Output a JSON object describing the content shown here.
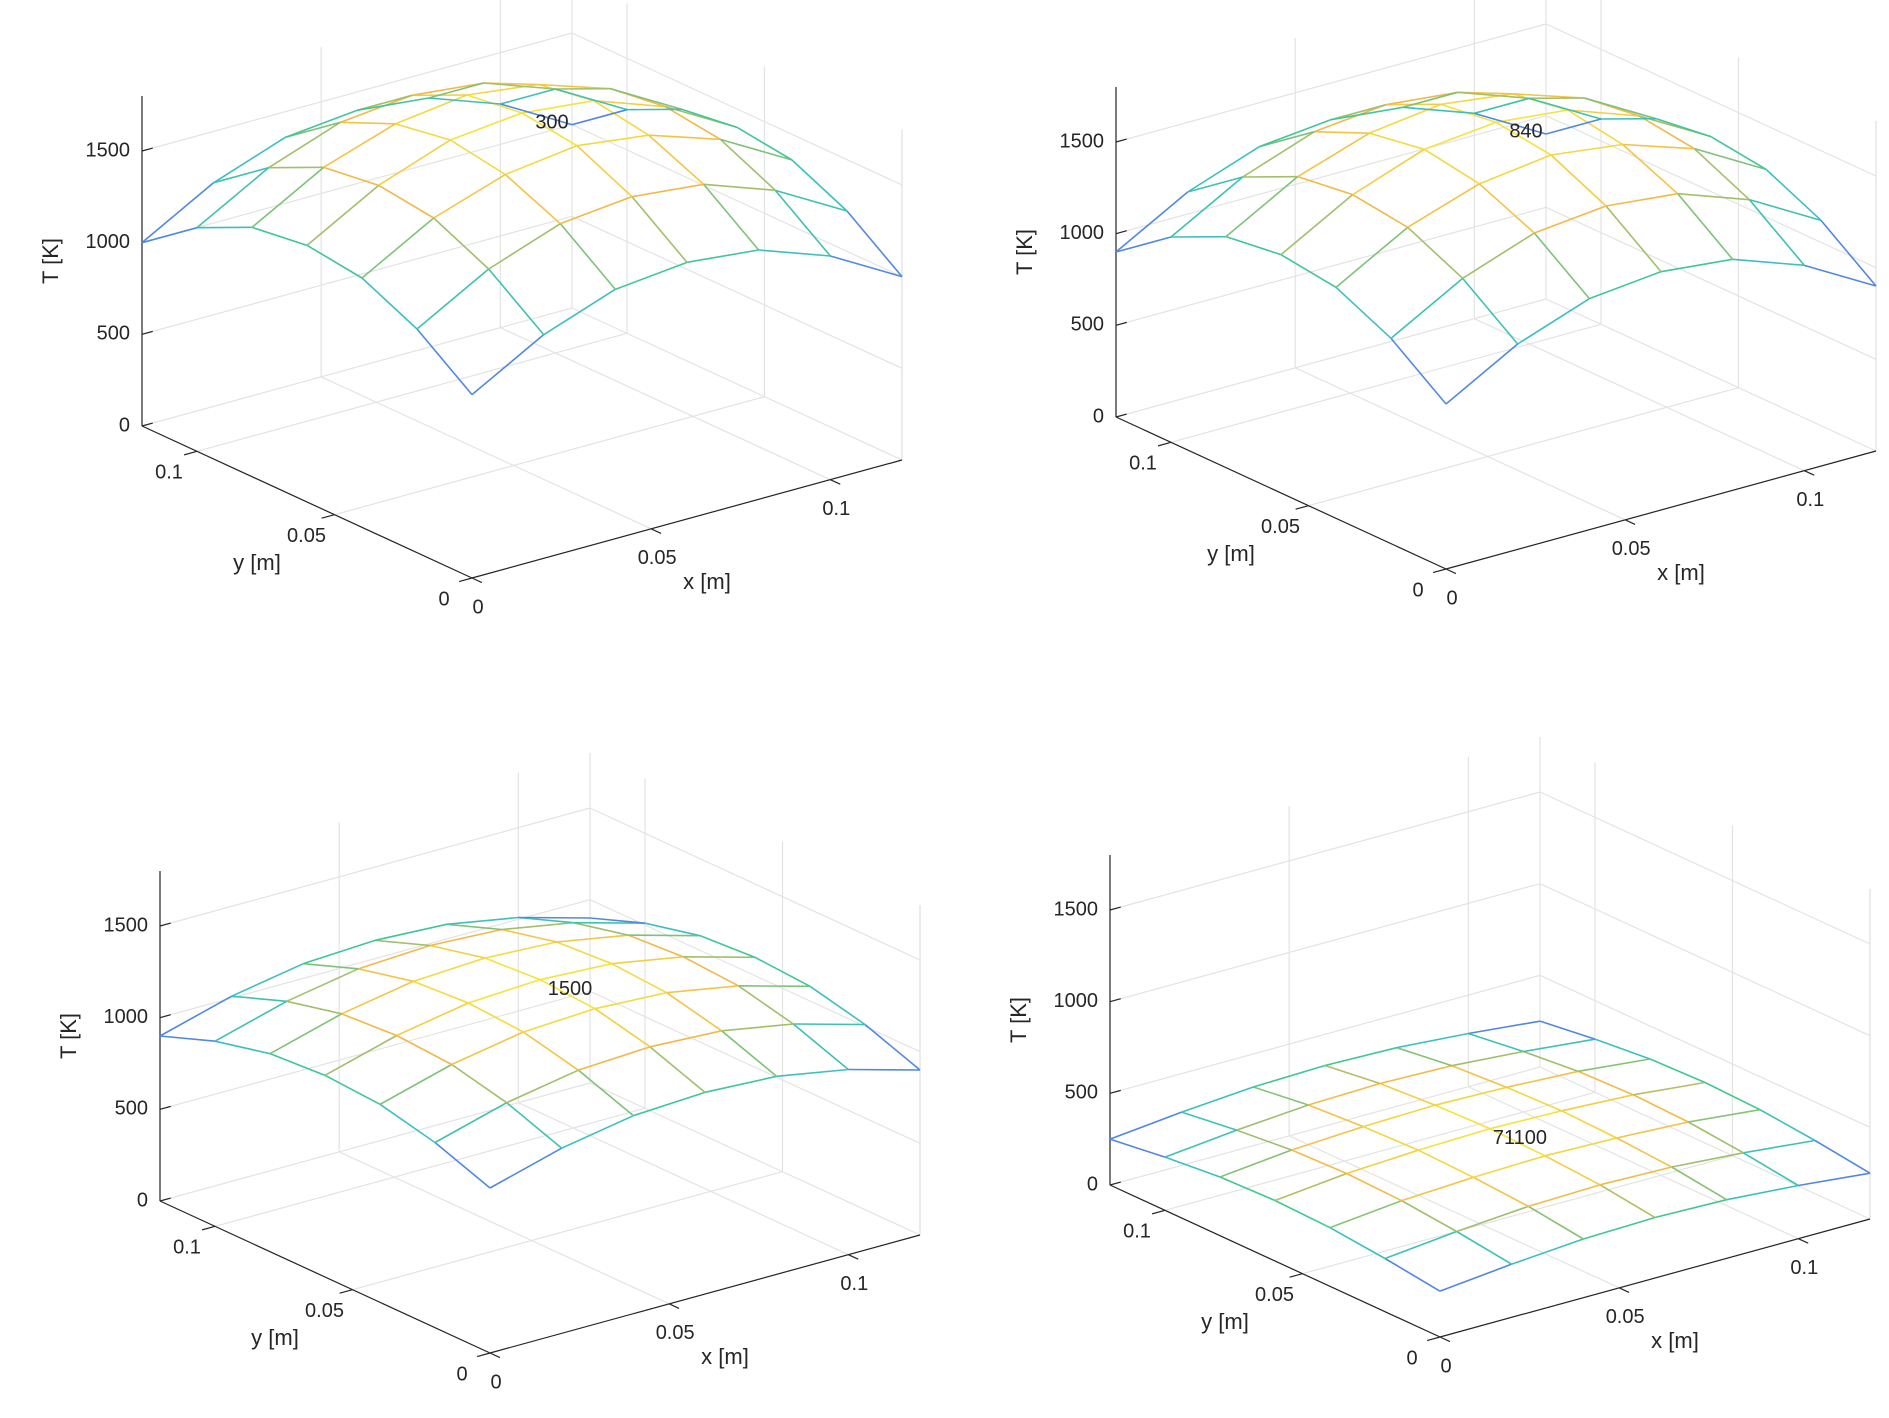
{
  "chart_data": [
    {
      "type": "surface",
      "annotation": "300",
      "xlabel": "x [m]",
      "ylabel": "y [m]",
      "zlabel": "T [K]",
      "x": [
        0,
        0.02,
        0.04,
        0.06,
        0.08,
        0.1,
        0.12
      ],
      "y": [
        0,
        0.02,
        0.04,
        0.06,
        0.08,
        0.1,
        0.12
      ],
      "z": [
        [
          1000,
          1220,
          1360,
          1400,
          1360,
          1220,
          1000
        ],
        [
          1220,
          1440,
          1580,
          1620,
          1580,
          1440,
          1220
        ],
        [
          1360,
          1580,
          1710,
          1760,
          1710,
          1580,
          1360
        ],
        [
          1400,
          1620,
          1760,
          1800,
          1760,
          1620,
          1400
        ],
        [
          1360,
          1580,
          1710,
          1760,
          1710,
          1580,
          1360
        ],
        [
          1220,
          1440,
          1580,
          1620,
          1580,
          1440,
          1220
        ],
        [
          1000,
          1220,
          1360,
          1400,
          1360,
          1220,
          1000
        ]
      ],
      "xlim": [
        0,
        0.12
      ],
      "ylim": [
        0,
        0.12
      ],
      "zlim": [
        0,
        1800
      ],
      "xticks": [
        0,
        0.05,
        0.1
      ],
      "yticks": [
        0,
        0.05,
        0.1
      ],
      "zticks": [
        0,
        500,
        1000,
        1500
      ],
      "colormap": [
        "#6a4fe0",
        "#3ab8e8",
        "#40c890",
        "#f2b84a",
        "#f5e83a"
      ],
      "grid": true
    },
    {
      "type": "surface",
      "annotation": "840",
      "xlabel": "x [m]",
      "ylabel": "y [m]",
      "zlabel": "T [K]",
      "x": [
        0,
        0.02,
        0.04,
        0.06,
        0.08,
        0.1,
        0.12
      ],
      "y": [
        0,
        0.02,
        0.04,
        0.06,
        0.08,
        0.1,
        0.12
      ],
      "z": [
        [
          900,
          1120,
          1260,
          1300,
          1260,
          1120,
          900
        ],
        [
          1120,
          1340,
          1480,
          1520,
          1480,
          1340,
          1120
        ],
        [
          1260,
          1480,
          1610,
          1660,
          1610,
          1480,
          1260
        ],
        [
          1300,
          1520,
          1660,
          1700,
          1660,
          1520,
          1300
        ],
        [
          1260,
          1480,
          1610,
          1660,
          1610,
          1480,
          1260
        ],
        [
          1120,
          1340,
          1480,
          1520,
          1480,
          1340,
          1120
        ],
        [
          900,
          1120,
          1260,
          1300,
          1260,
          1120,
          900
        ]
      ],
      "xlim": [
        0,
        0.12
      ],
      "ylim": [
        0,
        0.12
      ],
      "zlim": [
        0,
        1800
      ],
      "xticks": [
        0,
        0.05,
        0.1
      ],
      "yticks": [
        0,
        0.05,
        0.1
      ],
      "zticks": [
        0,
        500,
        1000,
        1500
      ],
      "colormap": [
        "#6a4fe0",
        "#3ab8e8",
        "#40c890",
        "#f2b84a",
        "#f5e83a"
      ],
      "grid": true
    },
    {
      "type": "surface",
      "annotation": "1500",
      "xlabel": "x [m]",
      "ylabel": "y [m]",
      "zlabel": "T [K]",
      "x": [
        0,
        0.02,
        0.04,
        0.06,
        0.08,
        0.1,
        0.12
      ],
      "y": [
        0,
        0.02,
        0.04,
        0.06,
        0.08,
        0.1,
        0.12
      ],
      "z": [
        [
          900,
          1010,
          1080,
          1100,
          1080,
          1010,
          900
        ],
        [
          1010,
          1120,
          1190,
          1210,
          1190,
          1120,
          1010
        ],
        [
          1080,
          1190,
          1260,
          1280,
          1260,
          1190,
          1080
        ],
        [
          1100,
          1210,
          1280,
          1300,
          1280,
          1210,
          1100
        ],
        [
          1080,
          1190,
          1260,
          1280,
          1260,
          1190,
          1080
        ],
        [
          1010,
          1120,
          1190,
          1210,
          1190,
          1120,
          1010
        ],
        [
          900,
          1010,
          1080,
          1100,
          1080,
          1010,
          900
        ]
      ],
      "xlim": [
        0,
        0.12
      ],
      "ylim": [
        0,
        0.12
      ],
      "zlim": [
        0,
        1800
      ],
      "xticks": [
        0,
        0.05,
        0.1
      ],
      "yticks": [
        0,
        0.05,
        0.1
      ],
      "zticks": [
        0,
        500,
        1000,
        1500
      ],
      "colormap": [
        "#6a4fe0",
        "#3ab8e8",
        "#40c890",
        "#f2b84a",
        "#f5e83a"
      ],
      "grid": true
    },
    {
      "type": "surface",
      "annotation": "71100",
      "xlabel": "x [m]",
      "ylabel": "y [m]",
      "zlabel": "T [K]",
      "x": [
        0,
        0.02,
        0.04,
        0.06,
        0.08,
        0.1,
        0.12
      ],
      "y": [
        0,
        0.02,
        0.04,
        0.06,
        0.08,
        0.1,
        0.12
      ],
      "z": [
        [
          250,
          290,
          320,
          330,
          320,
          290,
          250
        ],
        [
          290,
          330,
          360,
          370,
          360,
          330,
          290
        ],
        [
          320,
          360,
          380,
          390,
          380,
          360,
          320
        ],
        [
          330,
          370,
          390,
          400,
          390,
          370,
          330
        ],
        [
          320,
          360,
          380,
          390,
          380,
          360,
          320
        ],
        [
          290,
          330,
          360,
          370,
          360,
          330,
          290
        ],
        [
          250,
          290,
          320,
          330,
          320,
          290,
          250
        ]
      ],
      "xlim": [
        0,
        0.12
      ],
      "ylim": [
        0,
        0.12
      ],
      "zlim": [
        0,
        1800
      ],
      "xticks": [
        0,
        0.05,
        0.1
      ],
      "yticks": [
        0,
        0.05,
        0.1
      ],
      "zticks": [
        0,
        500,
        1000,
        1500
      ],
      "colormap": [
        "#6a4fe0",
        "#3ab8e8",
        "#40c890",
        "#f2b84a",
        "#f5e83a"
      ],
      "grid": true
    }
  ]
}
